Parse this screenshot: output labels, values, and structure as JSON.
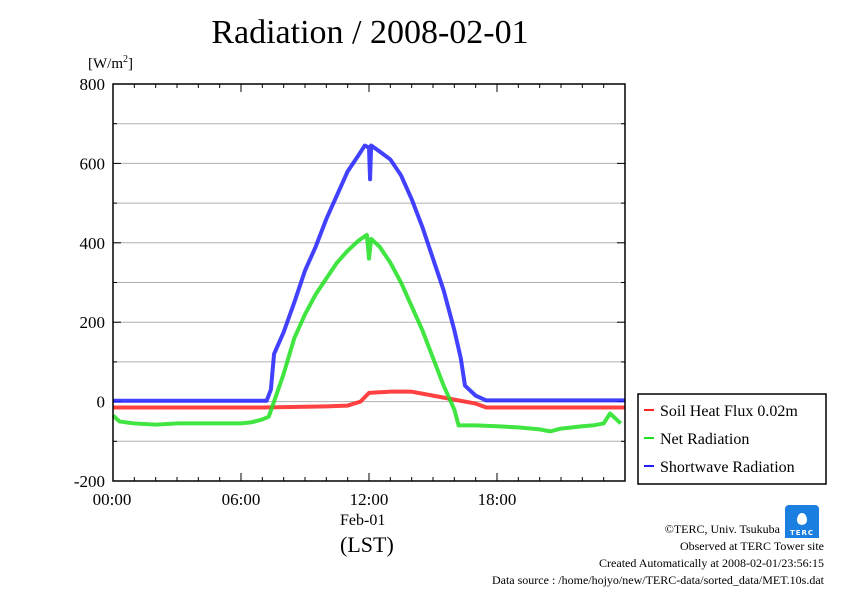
{
  "chart_data": {
    "type": "line",
    "title": "Radiation / 2008-02-01",
    "ylabel": "[W/m2]",
    "ylabel_main": "[W/m",
    "ylabel_sup": "2",
    "ylabel_end": "]",
    "xlabel": "(LST)",
    "date_label": "Feb-01",
    "xlim": [
      0,
      24
    ],
    "ylim": [
      -200,
      800
    ],
    "xticks": [
      {
        "v": 0,
        "label": "00:00"
      },
      {
        "v": 6,
        "label": "06:00"
      },
      {
        "v": 12,
        "label": "12:00"
      },
      {
        "v": 18,
        "label": "18:00"
      }
    ],
    "yticks": [
      {
        "v": 800,
        "label": "800"
      },
      {
        "v": 600,
        "label": "600"
      },
      {
        "v": 400,
        "label": "400"
      },
      {
        "v": 200,
        "label": "200"
      },
      {
        "v": 0,
        "label": "0"
      },
      {
        "v": -200,
        "label": "-200"
      }
    ],
    "grid": true,
    "legend_position": "right",
    "series": [
      {
        "name": "Soil Heat Flux 0.02m",
        "color": "#ff2020",
        "x": [
          0,
          7,
          10,
          11,
          11.6,
          12,
          13,
          14,
          15,
          16,
          17,
          17.5,
          24
        ],
        "y": [
          -15,
          -15,
          -12,
          -10,
          0,
          22,
          25,
          25,
          15,
          5,
          -5,
          -15,
          -15
        ]
      },
      {
        "name": "Net Radiation",
        "color": "#20e020",
        "x": [
          0,
          0.3,
          1,
          2,
          3,
          4,
          5,
          6,
          6.5,
          7,
          7.3,
          7.55,
          8,
          8.5,
          9,
          9.5,
          10,
          10.5,
          11,
          11.5,
          11.9,
          12,
          12.1,
          12.5,
          13,
          13.5,
          14,
          14.5,
          15,
          15.5,
          16,
          16.2,
          17,
          18,
          19,
          20,
          20.5,
          21,
          22,
          22.5,
          23,
          23.3,
          23.6,
          23.8
        ],
        "y": [
          -35,
          -50,
          -55,
          -58,
          -55,
          -55,
          -55,
          -55,
          -52,
          -45,
          -38,
          0,
          70,
          160,
          220,
          270,
          310,
          350,
          380,
          405,
          420,
          360,
          410,
          390,
          350,
          300,
          240,
          180,
          110,
          40,
          -20,
          -60,
          -60,
          -62,
          -65,
          -70,
          -75,
          -68,
          -62,
          -60,
          -55,
          -30,
          -45,
          -55
        ]
      },
      {
        "name": "Shortwave Radiation",
        "color": "#2020ff",
        "x": [
          0,
          7.2,
          7.4,
          7.55,
          8,
          8.5,
          9,
          9.5,
          10,
          10.5,
          11,
          11.5,
          11.8,
          12,
          12.05,
          12.1,
          12.5,
          13,
          13.5,
          14,
          14.5,
          15,
          15.5,
          16,
          16.3,
          16.5,
          17,
          17.5,
          24
        ],
        "y": [
          2,
          2,
          30,
          120,
          175,
          250,
          330,
          390,
          460,
          520,
          580,
          620,
          645,
          640,
          560,
          645,
          630,
          610,
          570,
          510,
          440,
          360,
          280,
          180,
          110,
          40,
          15,
          3,
          3
        ]
      }
    ]
  },
  "footer": {
    "logo_text": "TERC",
    "copyright": "©TERC, Univ. Tsukuba",
    "observed": "Observed at TERC Tower site",
    "created": "Created Automatically at 2008-02-01/23:56:15",
    "source": "Data source : /home/hojyo/new/TERC-data/sorted_data/MET.10s.dat"
  }
}
